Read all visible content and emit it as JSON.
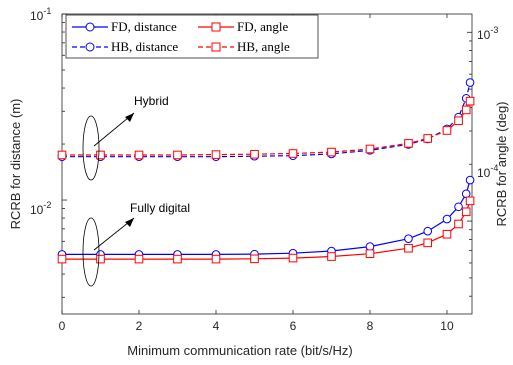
{
  "chart_data": {
    "type": "line",
    "xlabel": "Minimum communication rate (bit/s/Hz)",
    "ylabel_left": "RCRB for distance (m)",
    "ylabel_right": "RCRB for angle (deg)",
    "x_ticks": [
      "0",
      "2",
      "4",
      "6",
      "8",
      "10"
    ],
    "left_ticks": [
      "10",
      "10"
    ],
    "left_tick_exponents": [
      "-1",
      "-2"
    ],
    "right_ticks": [
      "10",
      "10"
    ],
    "right_tick_exponents": [
      "-3",
      "-4"
    ],
    "xlim": [
      0,
      10.65
    ],
    "ylim_left": [
      0.00244,
      0.1
    ],
    "ylim_right": [
      3.22e-05,
      0.00125
    ],
    "y_scale": "log",
    "grid": false,
    "legend_position": "top-left",
    "annotations": [
      "Hybrid",
      "Fully digital"
    ],
    "series": [
      {
        "name": "FD, distance",
        "axis": "left",
        "color": "#0000ff",
        "style": "solid",
        "marker": "circle",
        "x": [
          0,
          1,
          2,
          3,
          4,
          5,
          6,
          7,
          8,
          9,
          9.5,
          10,
          10.3,
          10.5,
          10.6
        ],
        "values": [
          0.0051,
          0.0051,
          0.0051,
          0.0051,
          0.0051,
          0.00512,
          0.00518,
          0.00532,
          0.00562,
          0.0062,
          0.0068,
          0.0079,
          0.0092,
          0.0108,
          0.0128
        ]
      },
      {
        "name": "FD, angle",
        "axis": "right",
        "color": "#ff0000",
        "style": "solid",
        "marker": "square",
        "x": [
          0,
          1,
          2,
          3,
          4,
          5,
          6,
          7,
          8,
          9,
          9.5,
          10,
          10.3,
          10.5,
          10.6
        ],
        "values": [
          6.29e-05,
          6.29e-05,
          6.29e-05,
          6.29e-05,
          6.29e-05,
          6.31e-05,
          6.37e-05,
          6.49e-05,
          6.72e-05,
          7.18e-05,
          7.67e-05,
          8.52e-05,
          9.65e-05,
          0.000112,
          0.000128
        ]
      },
      {
        "name": "HB, distance",
        "axis": "left",
        "color": "#0000ff",
        "style": "dashed",
        "marker": "circle",
        "x": [
          0,
          1,
          2,
          3,
          4,
          5,
          6,
          7,
          8,
          9,
          9.5,
          10,
          10.3,
          10.5,
          10.6
        ],
        "values": [
          0.0171,
          0.0171,
          0.0171,
          0.0171,
          0.0171,
          0.0172,
          0.0173,
          0.0177,
          0.0185,
          0.0199,
          0.0213,
          0.0241,
          0.0279,
          0.0352,
          0.0428
        ]
      },
      {
        "name": "HB, angle",
        "axis": "right",
        "color": "#ff0000",
        "style": "dashed",
        "marker": "square",
        "x": [
          0,
          1,
          2,
          3,
          4,
          5,
          6,
          7,
          8,
          9,
          9.5,
          10,
          10.3,
          10.5,
          10.6
        ],
        "values": [
          0.000224,
          0.000224,
          0.000224,
          0.000224,
          0.000225,
          0.000226,
          0.000228,
          0.000232,
          0.000241,
          0.000258,
          0.000274,
          0.000302,
          0.00034,
          0.000388,
          0.000432
        ]
      }
    ]
  }
}
